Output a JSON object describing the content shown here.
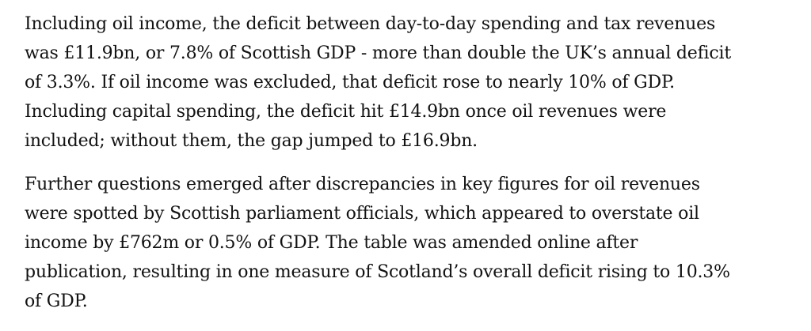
{
  "article": {
    "paragraphs": [
      {
        "lines": [
          "Including oil income, the deficit between day-to-day spending and tax revenues",
          "was £11.9bn, or 7.8% of Scottish GDP - more than double the UK’s annual deficit",
          "of 3.3%. If oil income was excluded, that deficit rose to nearly 10% of GDP.",
          "Including capital spending, the deficit hit £14.9bn once oil revenues were",
          "included; without them, the gap jumped to £16.9bn."
        ]
      },
      {
        "lines": [
          "Further questions emerged after discrepancies in key figures for oil revenues",
          "were spotted by Scottish parliament officials, which appeared to overstate oil",
          "income by £762m or 0.5% of GDP. The table was amended online after",
          "publication, resulting in one measure of Scotland’s overall deficit rising to 10.3%",
          "of GDP."
        ]
      }
    ]
  }
}
